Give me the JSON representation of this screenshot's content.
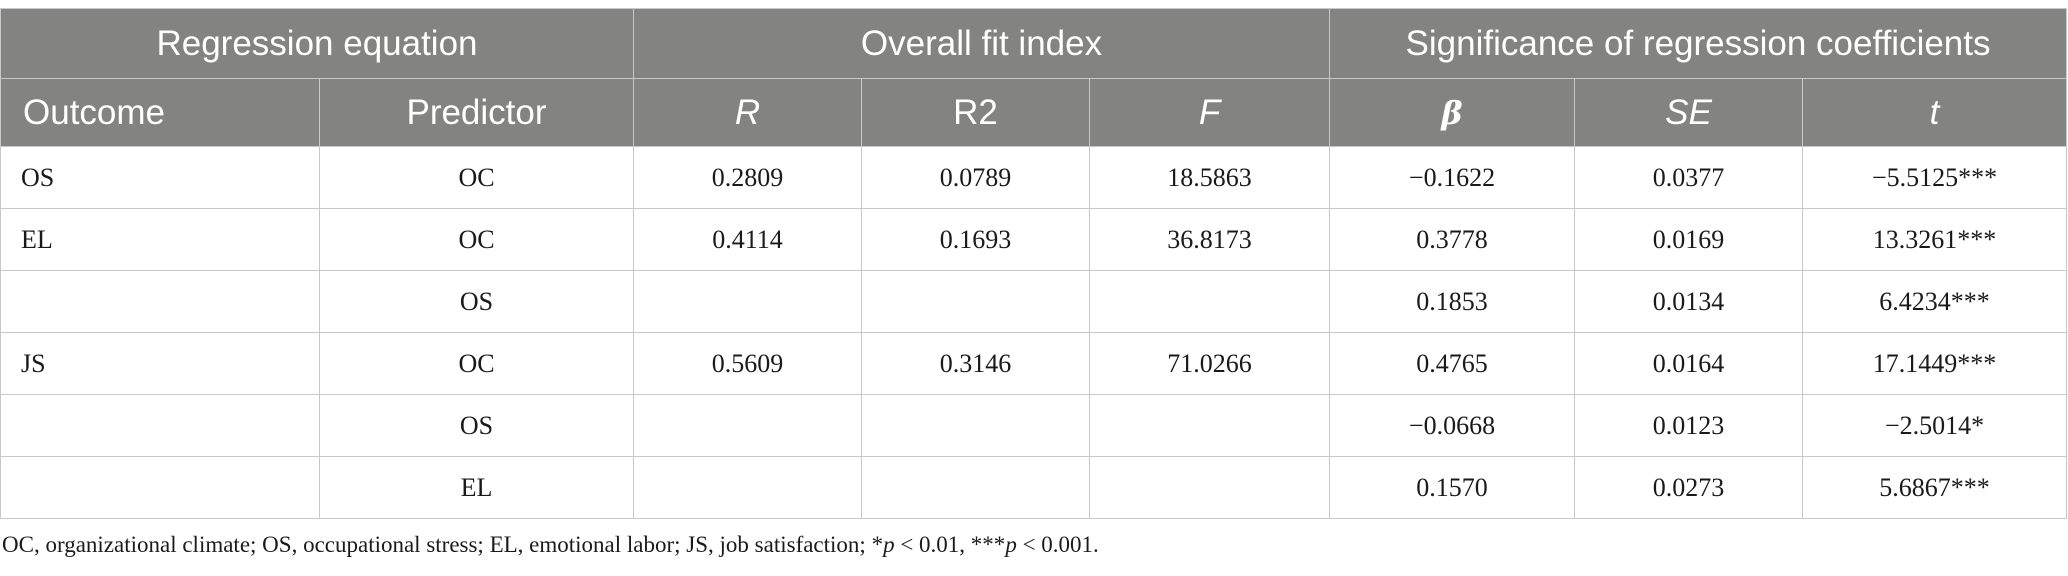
{
  "table": {
    "group_headers": {
      "regression_equation": "Regression equation",
      "overall_fit": "Overall fit index",
      "significance": "Significance of regression coefficients"
    },
    "column_headers": {
      "outcome": "Outcome",
      "predictor": "Predictor",
      "r": "R",
      "r2": "R2",
      "f": "F",
      "beta": "β",
      "se": "SE",
      "t": "t"
    },
    "rows": [
      {
        "outcome": "OS",
        "predictor": "OC",
        "r": "0.2809",
        "r2": "0.0789",
        "f": "18.5863",
        "beta": "−0.1622",
        "se": "0.0377",
        "t": "−5.5125***"
      },
      {
        "outcome": "EL",
        "predictor": "OC",
        "r": "0.4114",
        "r2": "0.1693",
        "f": "36.8173",
        "beta": "0.3778",
        "se": "0.0169",
        "t": "13.3261***"
      },
      {
        "outcome": "",
        "predictor": "OS",
        "r": "",
        "r2": "",
        "f": "",
        "beta": "0.1853",
        "se": "0.0134",
        "t": "6.4234***"
      },
      {
        "outcome": "JS",
        "predictor": "OC",
        "r": "0.5609",
        "r2": "0.3146",
        "f": "71.0266",
        "beta": "0.4765",
        "se": "0.0164",
        "t": "17.1449***"
      },
      {
        "outcome": "",
        "predictor": "OS",
        "r": "",
        "r2": "",
        "f": "",
        "beta": "−0.0668",
        "se": "0.0123",
        "t": "−2.5014*"
      },
      {
        "outcome": "",
        "predictor": "EL",
        "r": "",
        "r2": "",
        "f": "",
        "beta": "0.1570",
        "se": "0.0273",
        "t": "5.6867***"
      }
    ]
  },
  "footnote": {
    "abbreviations": "OC, organizational climate; OS, occupational stress; EL, emotional labor; JS, job satisfaction; *",
    "p1": "p",
    "threshold1": " < 0.01, ***",
    "p2": "p",
    "threshold2": " < 0.001."
  }
}
